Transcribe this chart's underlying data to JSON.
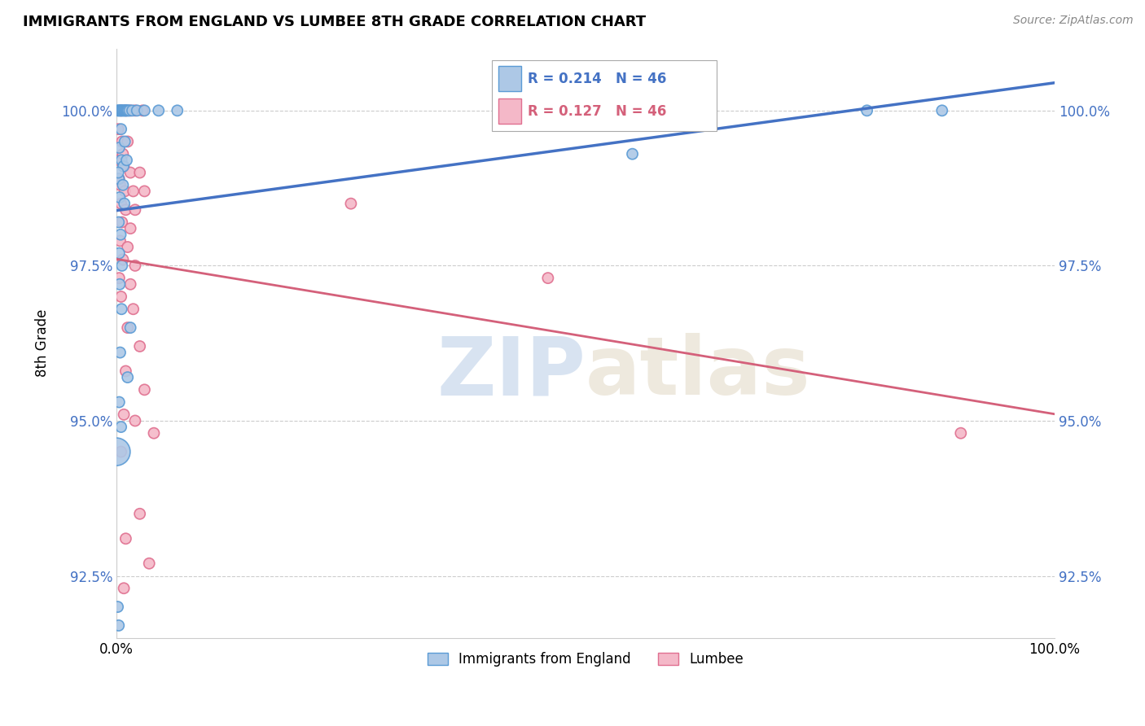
{
  "title": "IMMIGRANTS FROM ENGLAND VS LUMBEE 8TH GRADE CORRELATION CHART",
  "source": "Source: ZipAtlas.com",
  "ylabel": "8th Grade",
  "xlim": [
    0,
    100
  ],
  "ylim": [
    91.5,
    101.0
  ],
  "yticks": [
    92.5,
    95.0,
    97.5,
    100.0
  ],
  "xticks": [
    0,
    100
  ],
  "xticklabels": [
    "0.0%",
    "100.0%"
  ],
  "yticklabels": [
    "92.5%",
    "95.0%",
    "97.5%",
    "100.0%"
  ],
  "blue_R": 0.214,
  "blue_N": 46,
  "pink_R": 0.127,
  "pink_N": 46,
  "blue_color": "#adc8e6",
  "blue_edge": "#5b9bd5",
  "pink_color": "#f4b8c8",
  "pink_edge": "#e07090",
  "blue_line_color": "#4472c4",
  "pink_line_color": "#d4607a",
  "watermark_zip": "ZIP",
  "watermark_atlas": "atlas",
  "legend_label_blue": "Immigrants from England",
  "legend_label_pink": "Lumbee",
  "blue_scatter": [
    [
      0.15,
      100.0
    ],
    [
      0.25,
      100.0
    ],
    [
      0.35,
      100.0
    ],
    [
      0.45,
      100.0
    ],
    [
      0.55,
      100.0
    ],
    [
      0.65,
      100.0
    ],
    [
      0.75,
      100.0
    ],
    [
      0.85,
      100.0
    ],
    [
      0.95,
      100.0
    ],
    [
      1.05,
      100.0
    ],
    [
      1.15,
      100.0
    ],
    [
      1.25,
      100.0
    ],
    [
      1.4,
      100.0
    ],
    [
      1.7,
      100.0
    ],
    [
      2.2,
      100.0
    ],
    [
      3.0,
      100.0
    ],
    [
      4.5,
      100.0
    ],
    [
      6.5,
      100.0
    ],
    [
      0.3,
      99.4
    ],
    [
      0.55,
      99.2
    ],
    [
      0.75,
      99.1
    ],
    [
      0.25,
      98.9
    ],
    [
      0.7,
      98.8
    ],
    [
      0.35,
      98.6
    ],
    [
      0.85,
      98.5
    ],
    [
      0.25,
      98.2
    ],
    [
      0.45,
      98.0
    ],
    [
      0.3,
      97.7
    ],
    [
      0.6,
      97.5
    ],
    [
      0.35,
      97.2
    ],
    [
      0.55,
      96.8
    ],
    [
      1.5,
      96.5
    ],
    [
      0.4,
      96.1
    ],
    [
      1.2,
      95.7
    ],
    [
      0.3,
      95.3
    ],
    [
      0.5,
      94.9
    ],
    [
      0.0,
      94.5
    ],
    [
      0.15,
      92.0
    ],
    [
      0.25,
      91.7
    ],
    [
      55.0,
      99.3
    ],
    [
      80.0,
      100.0
    ],
    [
      88.0,
      100.0
    ],
    [
      0.5,
      99.7
    ],
    [
      0.9,
      99.5
    ],
    [
      1.1,
      99.2
    ],
    [
      0.2,
      99.0
    ]
  ],
  "blue_sizes": [
    90,
    90,
    90,
    90,
    90,
    90,
    90,
    90,
    90,
    90,
    90,
    90,
    90,
    90,
    90,
    90,
    90,
    90,
    90,
    90,
    90,
    90,
    90,
    90,
    90,
    90,
    90,
    90,
    90,
    90,
    90,
    90,
    90,
    90,
    90,
    90,
    600,
    90,
    90,
    90,
    90,
    90,
    90,
    90,
    90,
    90
  ],
  "pink_scatter": [
    [
      0.5,
      100.0
    ],
    [
      1.0,
      100.0
    ],
    [
      1.5,
      100.0
    ],
    [
      2.0,
      100.0
    ],
    [
      2.8,
      100.0
    ],
    [
      0.2,
      99.7
    ],
    [
      0.6,
      99.5
    ],
    [
      1.2,
      99.5
    ],
    [
      0.3,
      99.2
    ],
    [
      0.8,
      99.1
    ],
    [
      1.5,
      99.0
    ],
    [
      2.5,
      99.0
    ],
    [
      0.4,
      98.8
    ],
    [
      0.9,
      98.7
    ],
    [
      1.8,
      98.7
    ],
    [
      3.0,
      98.7
    ],
    [
      0.5,
      98.5
    ],
    [
      1.0,
      98.4
    ],
    [
      2.0,
      98.4
    ],
    [
      0.6,
      98.2
    ],
    [
      1.5,
      98.1
    ],
    [
      0.4,
      97.9
    ],
    [
      1.2,
      97.8
    ],
    [
      0.7,
      97.6
    ],
    [
      2.0,
      97.5
    ],
    [
      0.3,
      97.3
    ],
    [
      1.5,
      97.2
    ],
    [
      0.5,
      97.0
    ],
    [
      1.8,
      96.8
    ],
    [
      1.2,
      96.5
    ],
    [
      2.5,
      96.2
    ],
    [
      1.0,
      95.8
    ],
    [
      3.0,
      95.5
    ],
    [
      0.8,
      95.1
    ],
    [
      2.0,
      95.0
    ],
    [
      4.0,
      94.8
    ],
    [
      0.5,
      94.5
    ],
    [
      2.5,
      93.5
    ],
    [
      1.0,
      93.1
    ],
    [
      3.5,
      92.7
    ],
    [
      0.8,
      92.3
    ],
    [
      25.0,
      98.5
    ],
    [
      46.0,
      97.3
    ],
    [
      90.0,
      94.8
    ],
    [
      0.3,
      98.9
    ],
    [
      0.7,
      99.3
    ]
  ],
  "pink_sizes": [
    90,
    90,
    90,
    90,
    90,
    90,
    90,
    90,
    90,
    90,
    90,
    90,
    90,
    90,
    90,
    90,
    90,
    90,
    90,
    90,
    90,
    90,
    90,
    90,
    90,
    90,
    90,
    90,
    90,
    90,
    90,
    90,
    90,
    90,
    90,
    90,
    90,
    90,
    90,
    90,
    90,
    90,
    90,
    90,
    90,
    90
  ]
}
